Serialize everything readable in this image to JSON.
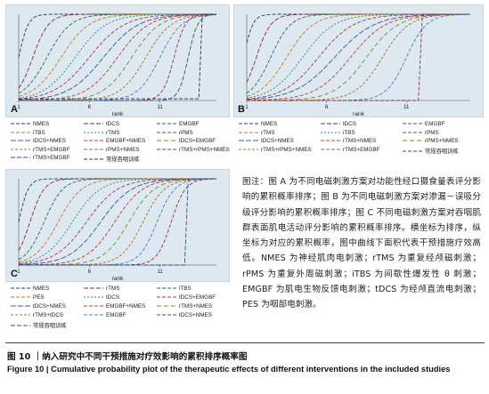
{
  "chart_data": [
    {
      "type": "line",
      "panel": "A",
      "xlabel": "rank",
      "xticks": [
        "1",
        "6",
        "11"
      ],
      "xlim": [
        1,
        15
      ],
      "ylim": [
        0,
        1
      ],
      "legend": [
        "NMES",
        "tDCS",
        "EMGBF",
        "iTBS",
        "rTMS",
        "rPMS",
        "tDCS+NMES",
        "EMGBF+NMES",
        "tDCS+EMGBF",
        "rTMS+EMGBF",
        "rPMS+NMES",
        "rTMS+rPMS+NMES",
        "rTMS+EMGBF",
        "常规吞咽训练"
      ],
      "legend_position": "bottom"
    },
    {
      "type": "line",
      "panel": "B",
      "xlabel": "rank",
      "xticks": [
        "1",
        "6",
        "11"
      ],
      "xlim": [
        1,
        15
      ],
      "ylim": [
        0,
        1
      ],
      "legend": [
        "NMES",
        "tDCS",
        "EMGBF",
        "rTMS",
        "iTBS",
        "rPMS",
        "tDCS+NMES",
        "rTMS+NMES",
        "rPMS+NMES",
        "rTMS+rPMS+NMES",
        "rTMS+EMGBF",
        "常规吞咽训练"
      ],
      "legend_position": "bottom"
    },
    {
      "type": "line",
      "panel": "C",
      "xlabel": "rank",
      "xticks": [
        "1",
        "6",
        "11"
      ],
      "xlim": [
        1,
        15
      ],
      "ylim": [
        0,
        1
      ],
      "legend": [
        "NMES",
        "rTMS",
        "iTBS",
        "PES",
        "tDCS",
        "tDCS+EMGBF",
        "tDCS+NMES",
        "EMGBF+NMES",
        "rTMS+NMES",
        "rTMS+tDCS",
        "EMGBF",
        "tDCS+NMES",
        "常规吞咽训练"
      ],
      "legend_position": "bottom"
    }
  ],
  "panels": {
    "a_letter": "A",
    "b_letter": "B",
    "c_letter": "C"
  },
  "note": "图注：图 A 为不同电磁刺激方案对功能性经口摄食量表评分影响的累积概率排序；图 B 为不同电磁刺激方案对渗漏－误吸分级评分影响的累积概率排序；图 C 不同电磁刺激方案对吞咽肌群表面肌电活动评分影响的累积概率排序。横坐标为排序，纵坐标为对应的累积概率，图中曲线下面积代表干预措施疗效高低。NMES 为神经肌肉电刺激；rTMS 为重复经颅磁刺激；rPMS 为重复外周磁刺激；iTBS 为间歇性爆发性 θ 刺激；EMGBF 为肌电生物反馈电刺激；tDCS 为经颅直流电刺激；PES 为咽部电刺激。",
  "caption": {
    "zh": "图 10 ｜纳入研究中不同干预措施对疗效影响的累积排序概率图",
    "en": "Figure 10  |  Cumulative probability plot of the therapeutic effects of different interventions in the included studies"
  }
}
